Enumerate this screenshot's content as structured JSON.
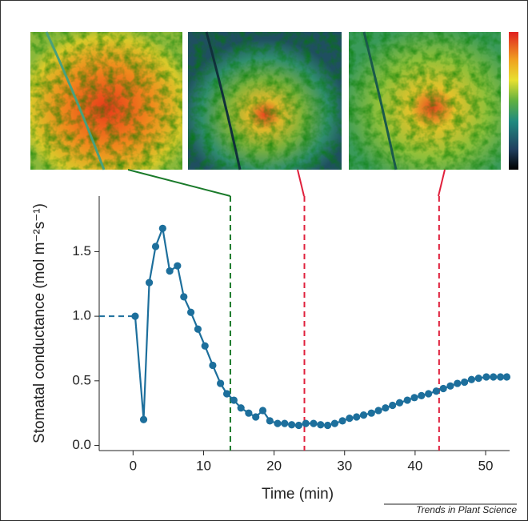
{
  "chart_data": {
    "type": "line",
    "x_label": "Time (min)",
    "y_label": "Stomatal conductance (mol m⁻²s⁻¹)",
    "source": "Trends in Plant Science",
    "xlim": [
      -4.8,
      53.4
    ],
    "ylim": [
      -0.04,
      1.93
    ],
    "xticks": [
      0,
      10,
      20,
      30,
      40,
      50
    ],
    "yticks": [
      {
        "value": 0,
        "label": "0.0"
      },
      0.5,
      {
        "value": 1,
        "label": "1.0"
      },
      1.5
    ],
    "series": [
      {
        "color": "#1d6f9c",
        "x": [
          0.3,
          1.5,
          2.3,
          3.2,
          4.2,
          5.2,
          6.3,
          7.2,
          8.2,
          9.2,
          10.2,
          11.3,
          12.4,
          13.3,
          14.3,
          15.3,
          16.4,
          17.4,
          18.4,
          19.4,
          20.5,
          21.5,
          22.5,
          23.5,
          24.5,
          25.6,
          26.6,
          27.6,
          28.6,
          29.7,
          30.7,
          31.7,
          32.7,
          33.8,
          34.8,
          35.8,
          36.8,
          37.8,
          38.9,
          39.9,
          40.9,
          41.9,
          43,
          44,
          45,
          46,
          47,
          48,
          49,
          50.1,
          51.1,
          52.1,
          53
        ],
        "values": [
          1.0,
          0.2,
          1.26,
          1.54,
          1.68,
          1.35,
          1.39,
          1.15,
          1.03,
          0.9,
          0.77,
          0.62,
          0.48,
          0.4,
          0.35,
          0.29,
          0.25,
          0.22,
          0.27,
          0.19,
          0.17,
          0.17,
          0.16,
          0.155,
          0.17,
          0.17,
          0.16,
          0.155,
          0.17,
          0.19,
          0.21,
          0.22,
          0.235,
          0.25,
          0.27,
          0.29,
          0.31,
          0.33,
          0.35,
          0.37,
          0.385,
          0.4,
          0.42,
          0.44,
          0.46,
          0.48,
          0.49,
          0.51,
          0.52,
          0.53,
          0.53,
          0.53,
          0.53
        ]
      }
    ],
    "reference_lines": [
      {
        "x": 13.8,
        "color": "#1a7a2a"
      },
      {
        "x": 24.3,
        "color": "#e0203c"
      },
      {
        "x": 43.4,
        "color": "#e0203c"
      }
    ]
  }
}
